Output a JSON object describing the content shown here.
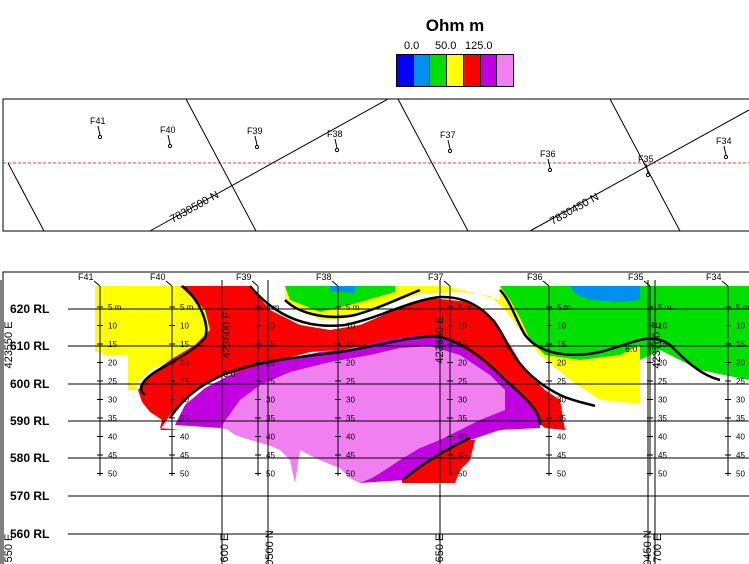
{
  "legend": {
    "title": "Ohm m",
    "tick_labels": [
      "0.0",
      "50.0",
      "125.0"
    ],
    "colors": [
      "#0000ff",
      "#0090f0",
      "#00e000",
      "#ffff00",
      "#ff0000",
      "#c000e0",
      "#f080f0"
    ]
  },
  "plan": {
    "stations": [
      "F41",
      "F40",
      "F39",
      "F38",
      "F37",
      "F36",
      "F35",
      "F34"
    ],
    "grid_labels": [
      "7830500 N",
      "7830450 N"
    ]
  },
  "section": {
    "stations": [
      "F41",
      "F40",
      "F39",
      "F38",
      "F37",
      "F36",
      "F35",
      "F34"
    ],
    "rl_labels": [
      "620 RL",
      "610 RL",
      "600 RL",
      "590 RL",
      "580 RL",
      "570 RL",
      "560 RL"
    ],
    "depth_labels": [
      "5 m",
      "10",
      "15",
      "20",
      "25",
      "30",
      "35",
      "40",
      "45",
      "50"
    ],
    "vertical_labels": [
      "423550 E",
      "423600 E",
      "423650 E",
      "423700 E"
    ],
    "bottom_labels": [
      "550 E",
      "600 E",
      "0500 N",
      "650 E",
      "0450 N",
      "700 E"
    ],
    "contour_label": "6.0"
  },
  "chart_data": {
    "type": "heatmap",
    "title": "Ohm m",
    "xlabel": "",
    "ylabel": "",
    "colorbar_ticks": [
      0.0,
      50.0,
      125.0
    ],
    "ylim": [
      560,
      625
    ],
    "y_ticks": [
      620,
      610,
      600,
      590,
      580,
      570,
      560
    ],
    "stations": [
      "F41",
      "F40",
      "F39",
      "F38",
      "F37",
      "F36",
      "F35",
      "F34"
    ],
    "depth_ticks_m": [
      5,
      10,
      15,
      20,
      25,
      30,
      35,
      40,
      45,
      50
    ]
  }
}
